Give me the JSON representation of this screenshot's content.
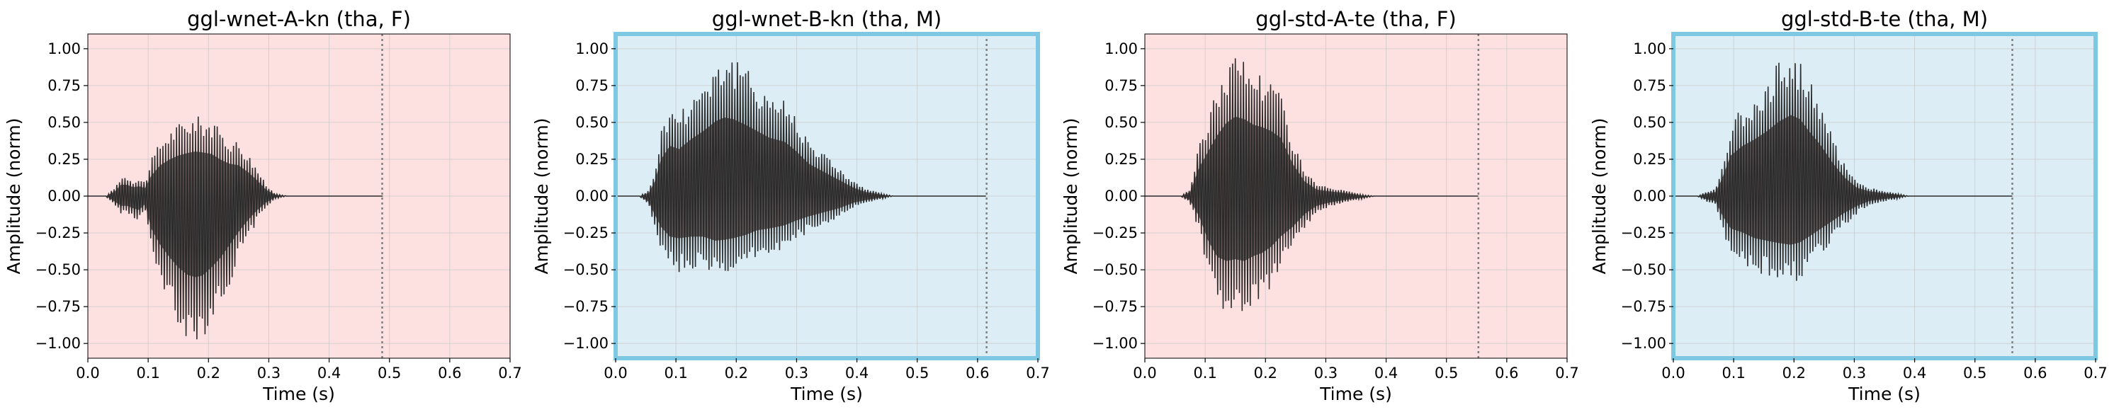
{
  "figure": {
    "panels": [
      {
        "title": "ggl-wnet-A-kn (tha, F)",
        "xlabel": "Time (s)",
        "ylabel": "Amplitude (norm)",
        "bg_color": "#fde0e0",
        "highlighted": false,
        "duration_marker_s": 0.488,
        "signal_end_s": 0.49,
        "envelope": [
          [
            0.03,
            0.0,
            0.0
          ],
          [
            0.045,
            0.06,
            -0.07
          ],
          [
            0.055,
            0.14,
            -0.12
          ],
          [
            0.065,
            0.14,
            -0.12
          ],
          [
            0.075,
            0.11,
            -0.15
          ],
          [
            0.085,
            0.12,
            -0.17
          ],
          [
            0.095,
            0.1,
            -0.1
          ],
          [
            0.105,
            0.25,
            -0.4
          ],
          [
            0.12,
            0.38,
            -0.6
          ],
          [
            0.135,
            0.45,
            -0.75
          ],
          [
            0.15,
            0.5,
            -0.88
          ],
          [
            0.165,
            0.53,
            -0.97
          ],
          [
            0.178,
            0.55,
            -1.0
          ],
          [
            0.19,
            0.54,
            -0.98
          ],
          [
            0.205,
            0.52,
            -0.88
          ],
          [
            0.22,
            0.45,
            -0.76
          ],
          [
            0.235,
            0.4,
            -0.6
          ],
          [
            0.25,
            0.38,
            -0.44
          ],
          [
            0.265,
            0.3,
            -0.3
          ],
          [
            0.28,
            0.2,
            -0.18
          ],
          [
            0.295,
            0.08,
            -0.08
          ],
          [
            0.31,
            0.02,
            -0.02
          ],
          [
            0.33,
            0.0,
            0.0
          ],
          [
            0.49,
            0.0,
            0.0
          ]
        ]
      },
      {
        "title": "ggl-wnet-B-kn (tha, M)",
        "xlabel": "Time (s)",
        "ylabel": "Amplitude (norm)",
        "bg_color": "#dcedf6",
        "highlighted": true,
        "duration_marker_s": 0.615,
        "signal_end_s": 0.615,
        "envelope": [
          [
            0.04,
            0.0,
            0.0
          ],
          [
            0.055,
            0.04,
            -0.07
          ],
          [
            0.065,
            0.18,
            -0.23
          ],
          [
            0.075,
            0.45,
            -0.38
          ],
          [
            0.09,
            0.62,
            -0.5
          ],
          [
            0.105,
            0.58,
            -0.52
          ],
          [
            0.125,
            0.7,
            -0.5
          ],
          [
            0.145,
            0.8,
            -0.5
          ],
          [
            0.165,
            0.92,
            -0.55
          ],
          [
            0.18,
            0.97,
            -0.54
          ],
          [
            0.195,
            0.95,
            -0.52
          ],
          [
            0.215,
            0.88,
            -0.48
          ],
          [
            0.235,
            0.8,
            -0.42
          ],
          [
            0.255,
            0.72,
            -0.4
          ],
          [
            0.28,
            0.67,
            -0.36
          ],
          [
            0.3,
            0.55,
            -0.3
          ],
          [
            0.32,
            0.4,
            -0.25
          ],
          [
            0.345,
            0.3,
            -0.2
          ],
          [
            0.37,
            0.2,
            -0.15
          ],
          [
            0.395,
            0.1,
            -0.08
          ],
          [
            0.415,
            0.05,
            -0.05
          ],
          [
            0.44,
            0.02,
            -0.02
          ],
          [
            0.46,
            0.0,
            0.0
          ],
          [
            0.615,
            0.0,
            0.0
          ]
        ]
      },
      {
        "title": "ggl-std-A-te (tha, F)",
        "xlabel": "Time (s)",
        "ylabel": "Amplitude (norm)",
        "bg_color": "#fde0e0",
        "highlighted": false,
        "duration_marker_s": 0.553,
        "signal_end_s": 0.553,
        "envelope": [
          [
            0.06,
            0.0,
            0.0
          ],
          [
            0.075,
            0.05,
            -0.05
          ],
          [
            0.09,
            0.35,
            -0.25
          ],
          [
            0.105,
            0.55,
            -0.55
          ],
          [
            0.12,
            0.75,
            -0.75
          ],
          [
            0.135,
            0.9,
            -0.8
          ],
          [
            0.15,
            0.98,
            -0.78
          ],
          [
            0.165,
            0.95,
            -0.8
          ],
          [
            0.18,
            0.88,
            -0.74
          ],
          [
            0.195,
            0.85,
            -0.7
          ],
          [
            0.21,
            0.8,
            -0.62
          ],
          [
            0.225,
            0.72,
            -0.5
          ],
          [
            0.245,
            0.4,
            -0.38
          ],
          [
            0.265,
            0.18,
            -0.22
          ],
          [
            0.285,
            0.08,
            -0.12
          ],
          [
            0.305,
            0.06,
            -0.08
          ],
          [
            0.33,
            0.04,
            -0.05
          ],
          [
            0.36,
            0.01,
            -0.02
          ],
          [
            0.38,
            0.0,
            0.0
          ],
          [
            0.553,
            0.0,
            0.0
          ]
        ]
      },
      {
        "title": "ggl-std-B-te (tha, M)",
        "xlabel": "Time (s)",
        "ylabel": "Amplitude (norm)",
        "bg_color": "#dcedf6",
        "highlighted": true,
        "duration_marker_s": 0.562,
        "signal_end_s": 0.562,
        "envelope": [
          [
            0.04,
            0.0,
            0.0
          ],
          [
            0.055,
            0.03,
            -0.04
          ],
          [
            0.07,
            0.05,
            -0.06
          ],
          [
            0.08,
            0.2,
            -0.22
          ],
          [
            0.095,
            0.5,
            -0.4
          ],
          [
            0.115,
            0.62,
            -0.45
          ],
          [
            0.135,
            0.7,
            -0.52
          ],
          [
            0.155,
            0.8,
            -0.55
          ],
          [
            0.175,
            0.92,
            -0.58
          ],
          [
            0.195,
            1.0,
            -0.6
          ],
          [
            0.21,
            0.95,
            -0.57
          ],
          [
            0.225,
            0.8,
            -0.5
          ],
          [
            0.245,
            0.62,
            -0.4
          ],
          [
            0.265,
            0.4,
            -0.3
          ],
          [
            0.285,
            0.22,
            -0.2
          ],
          [
            0.305,
            0.1,
            -0.12
          ],
          [
            0.325,
            0.06,
            -0.06
          ],
          [
            0.345,
            0.04,
            -0.04
          ],
          [
            0.37,
            0.02,
            -0.02
          ],
          [
            0.39,
            0.0,
            0.0
          ],
          [
            0.562,
            0.0,
            0.0
          ]
        ]
      }
    ]
  },
  "chart_data": [
    {
      "type": "line",
      "title": "ggl-wnet-A-kn (tha, F)",
      "xlabel": "Time (s)",
      "ylabel": "Amplitude (norm)",
      "xlim": [
        0.0,
        0.7
      ],
      "ylim": [
        -1.1,
        1.1
      ],
      "xticks": [
        "0.0",
        "0.1",
        "0.2",
        "0.3",
        "0.4",
        "0.5",
        "0.6",
        "0.7"
      ],
      "yticks": [
        "1.00",
        "0.75",
        "0.50",
        "0.25",
        "0.00",
        "−0.25",
        "−0.50",
        "−0.75",
        "−1.00"
      ],
      "grid": true,
      "series": [
        {
          "values_max": 0.55,
          "values_min": -1.0
        }
      ]
    },
    {
      "type": "line",
      "title": "ggl-wnet-B-kn (tha, M)",
      "xlabel": "Time (s)",
      "ylabel": "Amplitude (norm)",
      "xlim": [
        0.0,
        0.7
      ],
      "ylim": [
        -1.1,
        1.1
      ],
      "xticks": [
        "0.0",
        "0.1",
        "0.2",
        "0.3",
        "0.4",
        "0.5",
        "0.6",
        "0.7"
      ],
      "yticks": [
        "1.00",
        "0.75",
        "0.50",
        "0.25",
        "0.00",
        "−0.25",
        "−0.50",
        "−0.75",
        "−1.00"
      ],
      "grid": true,
      "series": [
        {
          "values_max": 0.97,
          "values_min": -0.55
        }
      ]
    },
    {
      "type": "line",
      "title": "ggl-std-A-te (tha, F)",
      "xlabel": "Time (s)",
      "ylabel": "Amplitude (norm)",
      "xlim": [
        0.0,
        0.7
      ],
      "ylim": [
        -1.1,
        1.1
      ],
      "xticks": [
        "0.0",
        "0.1",
        "0.2",
        "0.3",
        "0.4",
        "0.5",
        "0.6",
        "0.7"
      ],
      "yticks": [
        "1.00",
        "0.75",
        "0.50",
        "0.25",
        "0.00",
        "−0.25",
        "−0.50",
        "−0.75",
        "−1.00"
      ],
      "grid": true,
      "series": [
        {
          "values_max": 0.98,
          "values_min": -0.8
        }
      ]
    },
    {
      "type": "line",
      "title": "ggl-std-B-te (tha, M)",
      "xlabel": "Time (s)",
      "ylabel": "Amplitude (norm)",
      "xlim": [
        0.0,
        0.7
      ],
      "ylim": [
        -1.1,
        1.1
      ],
      "xticks": [
        "0.0",
        "0.1",
        "0.2",
        "0.3",
        "0.4",
        "0.5",
        "0.6",
        "0.7"
      ],
      "yticks": [
        "1.00",
        "0.75",
        "0.50",
        "0.25",
        "0.00",
        "−0.25",
        "−0.50",
        "−0.75",
        "−1.00"
      ],
      "grid": true,
      "series": [
        {
          "values_max": 1.0,
          "values_min": -0.6
        }
      ]
    }
  ],
  "style": {
    "waveform_color": "#2b2b2b",
    "waveform_fill": "#4a4040",
    "marker_color": "#808080",
    "grid_color": "#c8c8c8",
    "highlight_border": "#7ec8e3"
  }
}
